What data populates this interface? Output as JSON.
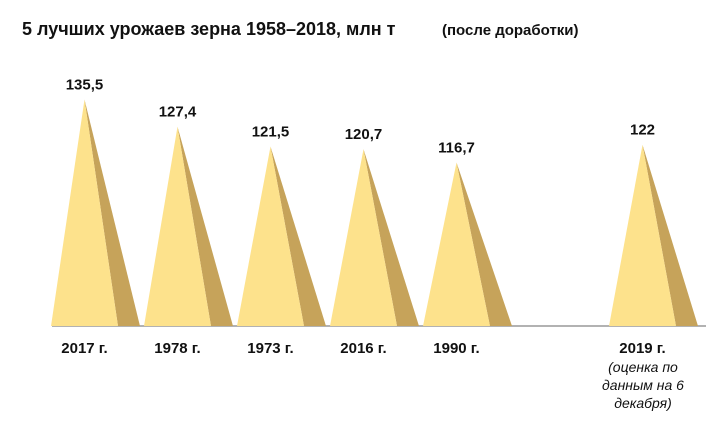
{
  "chart_data": {
    "type": "pyramid",
    "title": "5 лучших урожаев зерна 1958–2018, млн т",
    "subtitle": "(после доработки)",
    "categories": [
      "2017 г.",
      "1978 г.",
      "1973 г.",
      "2016 г.",
      "1990 г.",
      null,
      "2019 г."
    ],
    "values": [
      135.5,
      127.4,
      121.5,
      120.7,
      116.7,
      null,
      122
    ],
    "value_labels": [
      "135,5",
      "127,4",
      "121,5",
      "120,7",
      "116,7",
      null,
      "122"
    ],
    "annotation": "(оценка по данным на 6 декабря)",
    "ylim": [
      68,
      141
    ],
    "color": "#fde28c",
    "side_color": "#c6a35a"
  }
}
